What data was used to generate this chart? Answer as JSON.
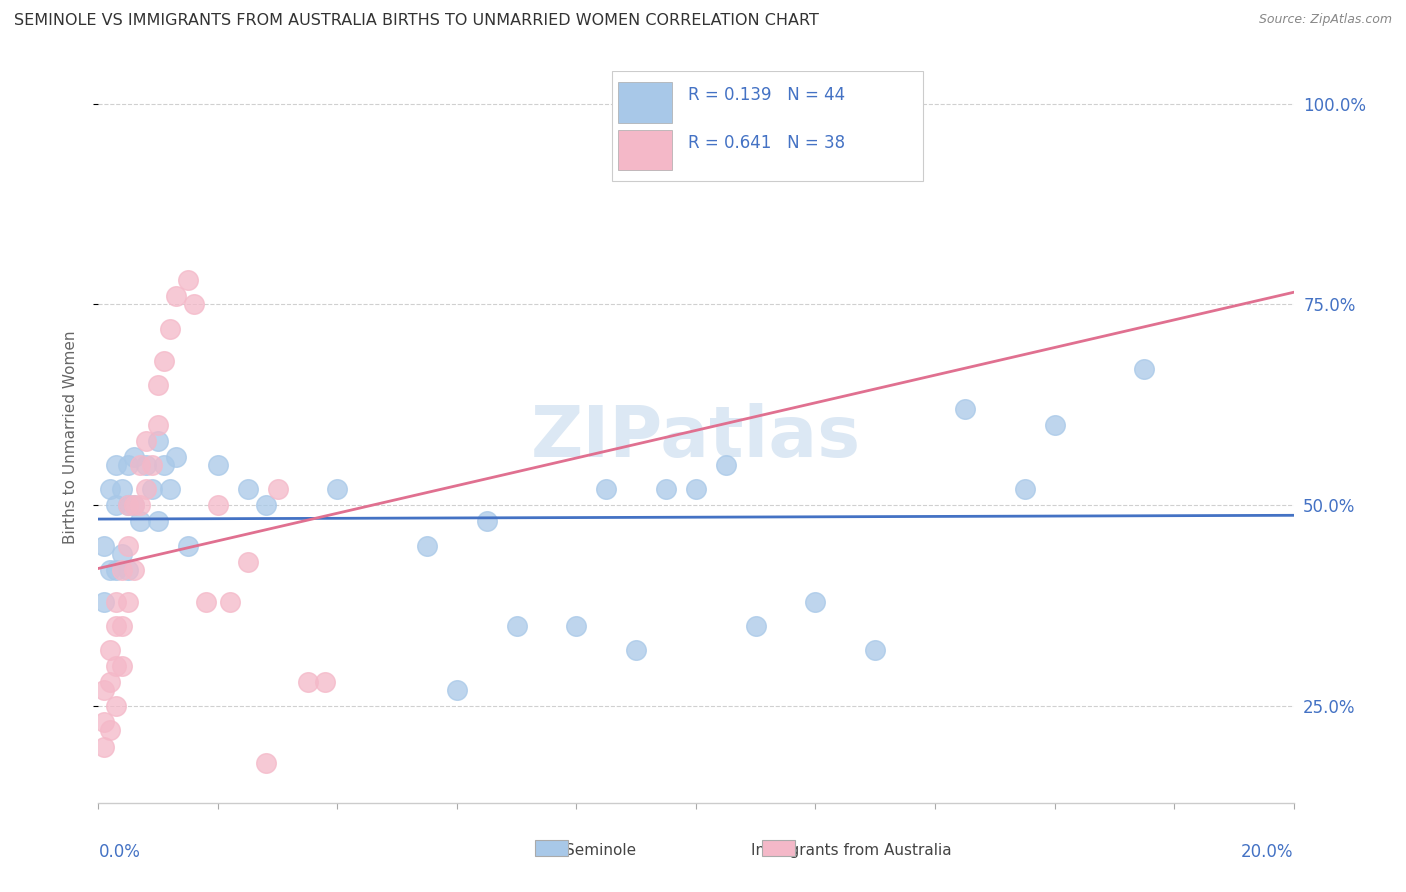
{
  "title": "SEMINOLE VS IMMIGRANTS FROM AUSTRALIA BIRTHS TO UNMARRIED WOMEN CORRELATION CHART",
  "source": "Source: ZipAtlas.com",
  "ylabel": "Births to Unmarried Women",
  "x_range": [
    0.0,
    0.2
  ],
  "y_range": [
    0.13,
    1.04
  ],
  "seminole_R": 0.139,
  "seminole_N": 44,
  "australia_R": 0.641,
  "australia_N": 38,
  "seminole_color": "#a8c8e8",
  "australia_color": "#f4b8c8",
  "seminole_line_color": "#4472c4",
  "australia_line_color": "#e07090",
  "watermark": "ZIPatlas",
  "seminole_x": [
    0.001,
    0.001,
    0.002,
    0.002,
    0.003,
    0.003,
    0.003,
    0.004,
    0.004,
    0.005,
    0.005,
    0.005,
    0.006,
    0.006,
    0.007,
    0.008,
    0.009,
    0.01,
    0.01,
    0.011,
    0.012,
    0.013,
    0.015,
    0.02,
    0.025,
    0.028,
    0.04,
    0.055,
    0.06,
    0.065,
    0.07,
    0.08,
    0.085,
    0.09,
    0.095,
    0.1,
    0.105,
    0.11,
    0.12,
    0.13,
    0.145,
    0.155,
    0.16,
    0.175
  ],
  "seminole_y": [
    0.38,
    0.45,
    0.42,
    0.52,
    0.42,
    0.5,
    0.55,
    0.44,
    0.52,
    0.42,
    0.5,
    0.55,
    0.5,
    0.56,
    0.48,
    0.55,
    0.52,
    0.48,
    0.58,
    0.55,
    0.52,
    0.56,
    0.45,
    0.55,
    0.52,
    0.5,
    0.52,
    0.45,
    0.27,
    0.48,
    0.35,
    0.35,
    0.52,
    0.32,
    0.52,
    0.52,
    0.55,
    0.35,
    0.38,
    0.32,
    0.62,
    0.52,
    0.6,
    0.67
  ],
  "australia_x": [
    0.001,
    0.001,
    0.001,
    0.002,
    0.002,
    0.002,
    0.003,
    0.003,
    0.003,
    0.003,
    0.004,
    0.004,
    0.004,
    0.005,
    0.005,
    0.005,
    0.006,
    0.006,
    0.007,
    0.007,
    0.008,
    0.008,
    0.009,
    0.01,
    0.01,
    0.011,
    0.012,
    0.013,
    0.015,
    0.016,
    0.018,
    0.02,
    0.022,
    0.025,
    0.028,
    0.03,
    0.035,
    0.038
  ],
  "australia_y": [
    0.2,
    0.23,
    0.27,
    0.22,
    0.28,
    0.32,
    0.25,
    0.3,
    0.35,
    0.38,
    0.3,
    0.35,
    0.42,
    0.38,
    0.45,
    0.5,
    0.42,
    0.5,
    0.5,
    0.55,
    0.52,
    0.58,
    0.55,
    0.6,
    0.65,
    0.68,
    0.72,
    0.76,
    0.78,
    0.75,
    0.38,
    0.5,
    0.38,
    0.43,
    0.18,
    0.52,
    0.28,
    0.28
  ],
  "y_ticks": [
    0.25,
    0.5,
    0.75,
    1.0
  ],
  "y_tick_labels": [
    "25.0%",
    "50.0%",
    "75.0%",
    "100.0%"
  ],
  "grid_color": "#d0d0d0",
  "tick_color": "#4472c4",
  "spine_color": "#cccccc"
}
